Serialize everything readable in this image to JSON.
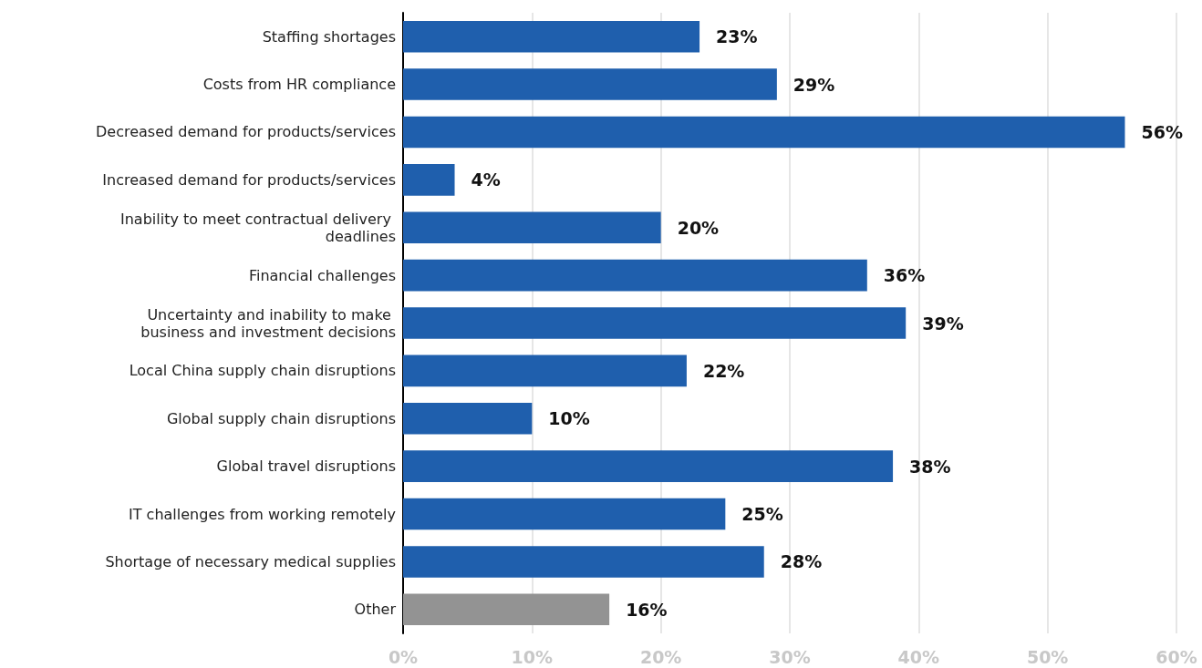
{
  "chart_data": {
    "type": "bar",
    "orientation": "horizontal",
    "categories": [
      "Staffing shortages",
      "Costs from HR compliance",
      "Decreased demand for products/services",
      "Increased demand for products/services",
      "Inability to meet contractual delivery deadlines",
      "Financial challenges",
      "Uncertainty and inability to make business and investment decisions",
      "Local China supply chain disruptions",
      "Global supply chain disruptions",
      "Global travel disruptions",
      "IT challenges from working remotely",
      "Shortage of necessary medical supplies",
      "Other"
    ],
    "values": [
      23,
      29,
      56,
      4,
      20,
      36,
      39,
      22,
      10,
      38,
      25,
      28,
      16
    ],
    "value_labels": [
      "23%",
      "29%",
      "56%",
      "4%",
      "20%",
      "36%",
      "39%",
      "22%",
      "10%",
      "38%",
      "25%",
      "28%",
      "16%"
    ],
    "colors": [
      "#1f5fad",
      "#1f5fad",
      "#1f5fad",
      "#1f5fad",
      "#1f5fad",
      "#1f5fad",
      "#1f5fad",
      "#1f5fad",
      "#1f5fad",
      "#1f5fad",
      "#1f5fad",
      "#1f5fad",
      "#939393"
    ],
    "xlim": [
      0,
      60
    ],
    "xticks": [
      {
        "value": 0,
        "label": "0%"
      },
      {
        "value": 10,
        "label": "10%"
      },
      {
        "value": 20,
        "label": "20%"
      },
      {
        "value": 30,
        "label": "30%"
      },
      {
        "value": 40,
        "label": "40%"
      },
      {
        "value": 50,
        "label": "50%"
      },
      {
        "value": 60,
        "label": "60%"
      }
    ],
    "grid": "x"
  }
}
